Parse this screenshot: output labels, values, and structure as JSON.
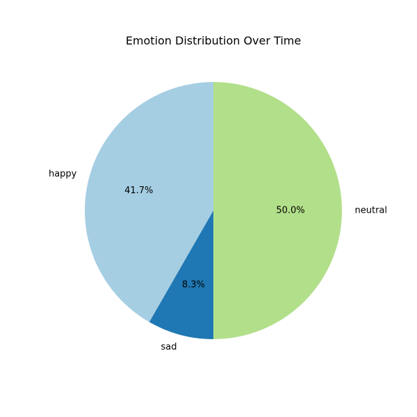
{
  "chart_data": {
    "type": "pie",
    "title": "Emotion Distribution Over Time",
    "categories": [
      "happy",
      "sad",
      "neutral"
    ],
    "values": [
      41.7,
      8.3,
      50.0
    ],
    "percent_labels": [
      "41.7%",
      "8.3%",
      "50.0%"
    ],
    "colors": [
      "#a6cee3",
      "#1f78b4",
      "#b2df8a"
    ],
    "start_angle_deg": 90,
    "direction": "counterclockwise"
  }
}
